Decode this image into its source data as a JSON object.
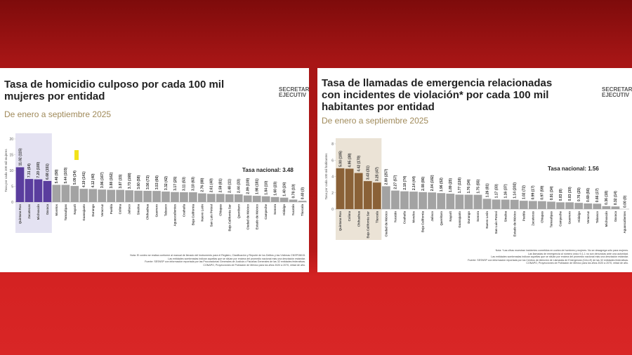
{
  "chart_data": [
    {
      "type": "bar",
      "title": "Tasa de homicidio culposo por cada 100 mil mujeres por entidad",
      "subtitle": "De enero a septiembre 2025",
      "ylabel": "Tasa por cada 100 mil mujeres",
      "annotation": "Tasa nacional: 3.48",
      "logo": [
        "SECRETAR",
        "EJECUTIV"
      ],
      "categories": [
        "Quintana Roo",
        "Zacatecas",
        "Michoacán",
        "Oaxaca",
        "Morelos",
        "Tamaulipas",
        "Nayarit",
        "Guanajuato",
        "Durango",
        "Veracruz",
        "Puebla",
        "Colima",
        "Jalisco",
        "Sinaloa",
        "Chihuahua",
        "Guerrero",
        "Tabasco",
        "Aguascalientes",
        "Coahuila",
        "Baja California",
        "Nuevo León",
        "San Luis Potosí",
        "Chiapas",
        "Baja California Sur",
        "Querétaro",
        "Ciudad de México",
        "Estado de México",
        "Campeche",
        "Sonora",
        "Hidalgo",
        "Yucatán",
        "Tlaxcala"
      ],
      "values": [
        11.02,
        7.31,
        7.2,
        6.68,
        5.46,
        5.44,
        5.09,
        4.19,
        4.12,
        3.96,
        3.88,
        3.87,
        3.73,
        3.6,
        3.56,
        3.53,
        3.32,
        3.17,
        3.11,
        3.1,
        2.76,
        2.61,
        2.59,
        2.48,
        2.44,
        2.09,
        1.98,
        1.84,
        1.6,
        1.4,
        0.78,
        0.4
      ],
      "value_labels": [
        "11.02 (115)",
        "7.31 (64)",
        "7.20 (180)",
        "6.68 (151)",
        "5.46 (58)",
        "5.44 (103)",
        "5.09 (34)",
        "4.19 (141)",
        "4.12 (40)",
        "3.96 (167)",
        "3.88 (162)",
        "3.87 (15)",
        "3.73 (168)",
        "3.60 (58)",
        "3.56 (72)",
        "3.53 (66)",
        "3.32 (42)",
        "3.17 (25)",
        "3.11 (53)",
        "3.10 (63)",
        "2.76 (88)",
        "2.61 (40)",
        "2.59 (81)",
        "2.48 (11)",
        "2.44 (33)",
        "2.09 (100)",
        "1.98 (181)",
        "1.84 (10)",
        "1.60 (23)",
        "1.40 (24)",
        "0.78 (10)",
        "0.40 (3)"
      ],
      "colors": [
        "#5a3d9e",
        "#5a3d9e",
        "#5a3d9e",
        "#5a3d9e",
        "#a3a3a3",
        "#a3a3a3",
        "#a3a3a3",
        "#a3a3a3",
        "#a3a3a3",
        "#a3a3a3",
        "#a3a3a3",
        "#a3a3a3",
        "#a3a3a3",
        "#a3a3a3",
        "#a3a3a3",
        "#a3a3a3",
        "#a3a3a3",
        "#a3a3a3",
        "#a3a3a3",
        "#a3a3a3",
        "#a3a3a3",
        "#a3a3a3",
        "#a3a3a3",
        "#a3a3a3",
        "#a3a3a3",
        "#a3a3a3",
        "#a3a3a3",
        "#a3a3a3",
        "#a3a3a3",
        "#a3a3a3",
        "#a3a3a3",
        "#a3a3a3"
      ],
      "highlight_color": "#e4e2f2",
      "ylim": [
        0,
        20
      ],
      "yticks": [
        0,
        5,
        10,
        15,
        20
      ],
      "notes": [
        "Nota: El conteo se realiza conforme al manual de llenado del Instrumento para el Registro, Clasificación y Reporte de los Delitos y las Víctimas CNSP/38/15.",
        "Las entidades sombreadas indican aquellas que se sitúan por encima del promedio nacional más una desviación estándar.",
        "Fuente: SESNSP con información reportada por las Procuradurías Generales de Justicia o Fiscalías Generales de las 32 entidades federativas.",
        "CONAPO, Proyecciones de Población de México para los años 2020 a 2070, mitad de año."
      ]
    },
    {
      "type": "bar",
      "title": "Tasa de llamadas de emergencia relacionadas con incidentes de violación* por cada 100 mil habitantes por entidad",
      "subtitle": "De enero a septiembre 2025",
      "ylabel": "Tasa por cada 100 mil habitantes",
      "annotation": "Tasa nacional: 1.56",
      "logo": [
        "SECRETAR",
        "EJECUTIV"
      ],
      "categories": [
        "Quintana Roo",
        "Colima",
        "Chihuahua",
        "Baja California Sur",
        "Tlaxcala",
        "Ciudad de México",
        "Yucatán",
        "Coahuila",
        "Morelos",
        "Baja California",
        "Jalisco",
        "Querétaro",
        "Nayarit",
        "Guanajuato",
        "Durango",
        "Sonora",
        "Nuevo León",
        "San Luis Potosí",
        "Sinaloa",
        "Estado de México",
        "Puebla",
        "Zacatecas",
        "Chiapas",
        "Tamaulipas",
        "Campeche",
        "Guerrero",
        "Hidalgo",
        "Veracruz",
        "Tabasco",
        "Michoacán",
        "Oaxaca",
        "Aguascalientes"
      ],
      "values": [
        5.0,
        4.95,
        4.42,
        3.43,
        3.25,
        2.8,
        2.27,
        2.18,
        2.14,
        2.08,
        2.04,
        1.96,
        1.89,
        1.77,
        1.76,
        1.75,
        1.26,
        1.17,
        1.16,
        1.14,
        1.02,
        0.99,
        0.97,
        0.91,
        0.83,
        0.83,
        0.76,
        0.69,
        0.66,
        0.36,
        0.32,
        0.0
      ],
      "value_labels": [
        "5.00 (105)",
        "4.95 (38)",
        "4.42 (170)",
        "3.43 (31)",
        "3.25 (47)",
        "2.80 (257)",
        "2.27 (57)",
        "2.18 (74)",
        "2.14 (44)",
        "2.08 (86)",
        "2.04 (182)",
        "1.96 (52)",
        "1.89 (25)",
        "1.77 (116)",
        "1.76 (34)",
        "1.75 (55)",
        "1.26 (81)",
        "1.17 (33)",
        "1.16 (37)",
        "1.14 (202)",
        "1.02 (72)",
        "0.99 (17)",
        "0.97 (59)",
        "0.91 (34)",
        "0.83 (8)",
        "0.83 (30)",
        "0.76 (25)",
        "0.69 (56)",
        "0.66 (17)",
        "0.36 (18)",
        "0.32 (14)",
        "0.00 (0)"
      ],
      "colors": [
        "#8a6137",
        "#8a6137",
        "#8a6137",
        "#8a6137",
        "#8a6137",
        "#a3a3a3",
        "#a3a3a3",
        "#a3a3a3",
        "#a3a3a3",
        "#a3a3a3",
        "#a3a3a3",
        "#a3a3a3",
        "#a3a3a3",
        "#a3a3a3",
        "#a3a3a3",
        "#a3a3a3",
        "#a3a3a3",
        "#a3a3a3",
        "#a3a3a3",
        "#a3a3a3",
        "#a3a3a3",
        "#a3a3a3",
        "#a3a3a3",
        "#a3a3a3",
        "#a3a3a3",
        "#a3a3a3",
        "#a3a3a3",
        "#a3a3a3",
        "#a3a3a3",
        "#a3a3a3",
        "#a3a3a3",
        "#a3a3a3"
      ],
      "highlight_color": "#ebe3d6",
      "ylim": [
        0,
        8
      ],
      "yticks": [
        0,
        2,
        4,
        6,
        8
      ],
      "notes": [
        "Nota: *Las cifras muestran incidentes cometidos en contra de hombres y mujeres. No se desagrega sólo para mujeres.",
        "Las llamadas de emergencia al número único 9-1-1 no son denuncias ante una autoridad.",
        "Las entidades sombreadas indican aquellas que se sitúan por encima del promedio nacional más una desviación estándar.",
        "Fuente: SESNSP con información reportada por los Centros de Atención de Llamadas de Emergencia (CALLE) de las 32 entidades federativas.",
        "CONAPO, Proyecciones de Población de México para los años 2020 a 2070, mitad de año."
      ]
    }
  ]
}
